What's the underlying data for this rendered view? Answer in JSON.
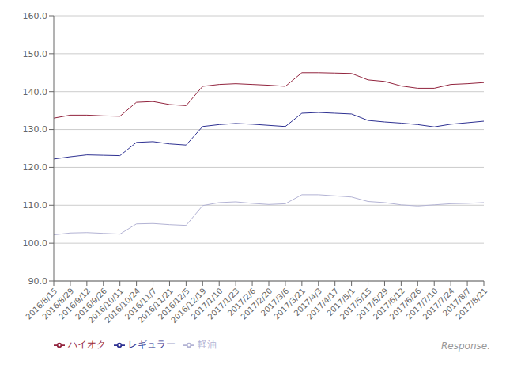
{
  "chart_data": {
    "type": "line",
    "categories": [
      "2016/8/15",
      "2016/8/29",
      "2016/9/12",
      "2016/9/26",
      "2016/10/11",
      "2016/10/24",
      "2016/11/7",
      "2016/11/21",
      "2016/12/5",
      "2016/12/19",
      "2017/1/10",
      "2017/1/23",
      "2017/2/6",
      "2017/2/20",
      "2017/3/6",
      "2017/3/21",
      "2017/4/3",
      "2017/4/17",
      "2017/5/1",
      "2017/5/15",
      "2017/5/29",
      "2017/6/12",
      "2017/6/26",
      "2017/7/10",
      "2017/7/24",
      "2017/8/7",
      "2017/8/21"
    ],
    "series": [
      {
        "name": "レギュラー",
        "color": "#2e3192",
        "values": [
          122.2,
          122.8,
          123.3,
          123.2,
          123.1,
          126.6,
          126.8,
          126.2,
          125.9,
          130.8,
          131.3,
          131.6,
          131.4,
          131.1,
          130.8,
          134.3,
          134.5,
          134.3,
          134.1,
          132.4,
          132.0,
          131.7,
          131.3,
          130.7,
          131.4,
          131.8,
          132.2
        ]
      },
      {
        "name": "ハイオク",
        "color": "#92243e",
        "values": [
          133.0,
          133.8,
          133.8,
          133.6,
          133.5,
          137.2,
          137.4,
          136.6,
          136.3,
          141.4,
          141.9,
          142.1,
          141.9,
          141.7,
          141.4,
          145.0,
          145.0,
          144.9,
          144.8,
          143.1,
          142.7,
          141.5,
          140.9,
          140.9,
          141.9,
          142.1,
          142.4
        ]
      },
      {
        "name": "軽油",
        "color": "#b3b3d4",
        "values": [
          102.2,
          102.7,
          102.8,
          102.6,
          102.4,
          105.1,
          105.2,
          104.9,
          104.7,
          109.9,
          110.7,
          110.9,
          110.5,
          110.2,
          110.4,
          112.8,
          112.8,
          112.5,
          112.2,
          111.0,
          110.7,
          110.1,
          109.8,
          110.1,
          110.4,
          110.5,
          110.7
        ]
      }
    ],
    "ylim": [
      90,
      160
    ],
    "yticks": [
      {
        "value": 90,
        "label": "90.0"
      },
      {
        "value": 100,
        "label": "100.0"
      },
      {
        "value": 110,
        "label": "110.0"
      },
      {
        "value": 120,
        "label": "120.0"
      },
      {
        "value": 130,
        "label": "130.0"
      },
      {
        "value": 140,
        "label": "140.0"
      },
      {
        "value": 150,
        "label": "150.0"
      },
      {
        "value": 160,
        "label": "160.0"
      }
    ],
    "grid": true,
    "legend": "lower left",
    "annotations": [
      "Response."
    ]
  }
}
